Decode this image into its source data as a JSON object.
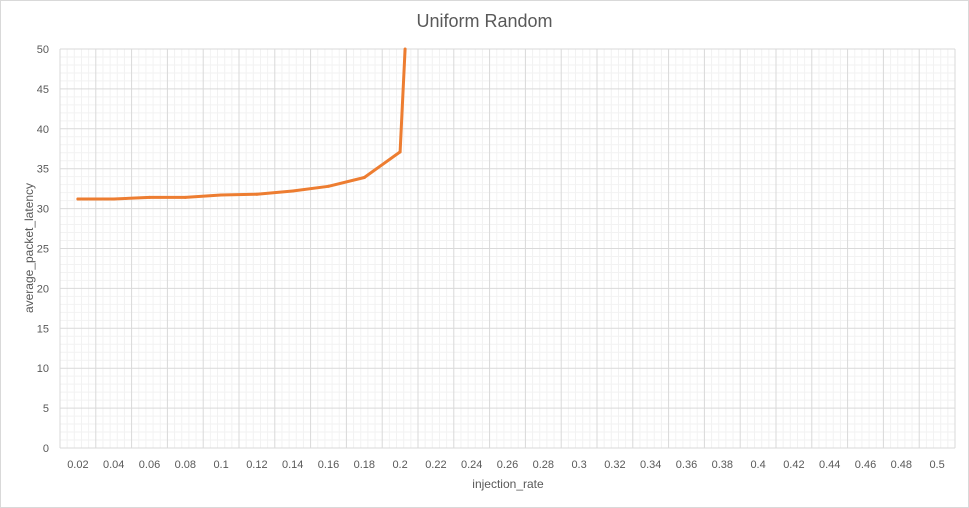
{
  "chart_data": {
    "type": "line",
    "title": "Uniform Random",
    "xlabel": "injection_rate",
    "ylabel": "average_packet_latency",
    "categories": [
      "0.02",
      "0.04",
      "0.06",
      "0.08",
      "0.1",
      "0.12",
      "0.14",
      "0.16",
      "0.18",
      "0.2",
      "0.22",
      "0.24",
      "0.26",
      "0.28",
      "0.3",
      "0.32",
      "0.34",
      "0.36",
      "0.38",
      "0.4",
      "0.42",
      "0.44",
      "0.46",
      "0.48",
      "0.5"
    ],
    "yticks": [
      "0",
      "5",
      "10",
      "15",
      "20",
      "25",
      "30",
      "35",
      "40",
      "45",
      "50"
    ],
    "ylim": [
      0,
      50
    ],
    "grid": true,
    "series": [
      {
        "color": "#ED7D31",
        "values": [
          31.2,
          31.2,
          31.4,
          31.4,
          31.7,
          31.8,
          32.2,
          32.8,
          33.9,
          37.1,
          null,
          null,
          null,
          null,
          null,
          null,
          null,
          null,
          null,
          null,
          null,
          null,
          null,
          null,
          null
        ],
        "overflow": {
          "from_category": "0.2",
          "value": 50,
          "note": "line rises off the top of the axis just past 0.2"
        }
      }
    ]
  }
}
